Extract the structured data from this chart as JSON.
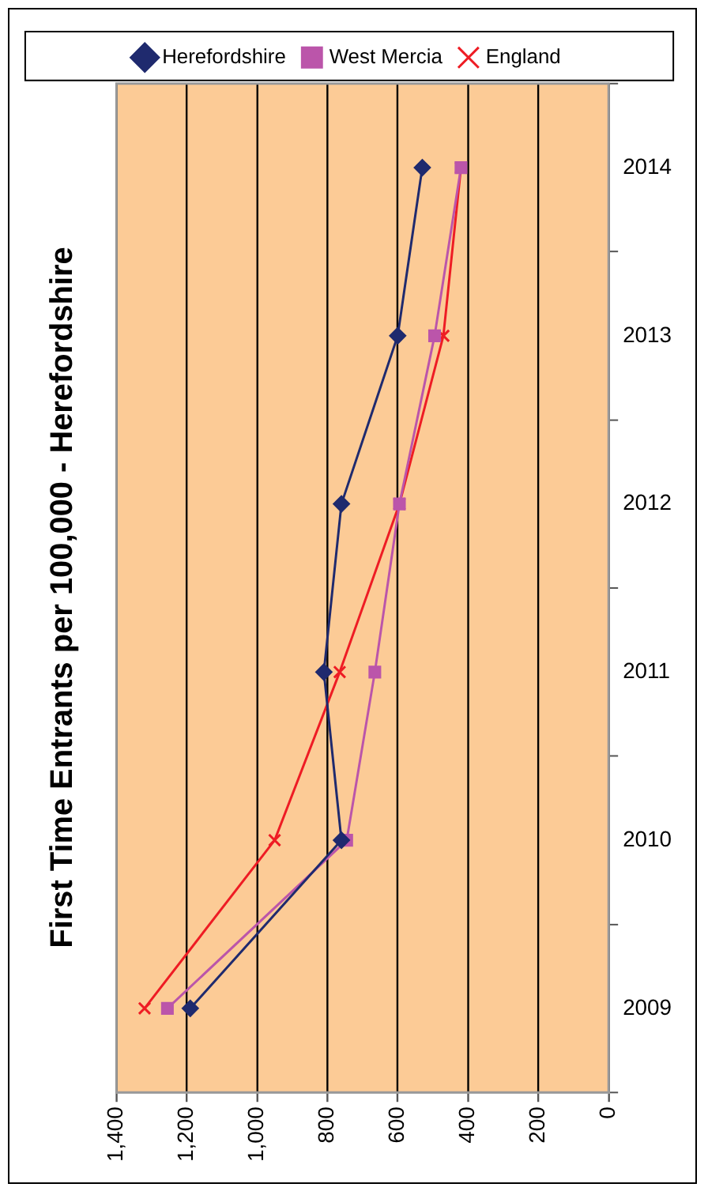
{
  "chart_data": {
    "type": "line",
    "title": "First Time Entrants per 100,000 - Herefordshire",
    "orientation": "horizontal",
    "categories": [
      "2014",
      "2013",
      "2012",
      "2011",
      "2010",
      "2009"
    ],
    "series": [
      {
        "name": "Herefordshire",
        "color": "#1f2a6e",
        "marker": "diamond",
        "values": [
          530,
          600,
          760,
          810,
          760,
          1190
        ]
      },
      {
        "name": "West Mercia",
        "color": "#bb55aa",
        "marker": "square",
        "values": [
          420,
          495,
          595,
          665,
          745,
          1255
        ]
      },
      {
        "name": "England",
        "color": "#ee1c24",
        "marker": "cross",
        "values": [
          420,
          470,
          595,
          765,
          950,
          1320
        ]
      }
    ],
    "xlim": [
      1400,
      0
    ],
    "xticks": [
      0,
      200,
      400,
      600,
      800,
      {
        "value": 1000,
        "label": "1,000"
      },
      {
        "value": 1200,
        "label": "1,200"
      },
      {
        "value": 1400,
        "label": "1,400"
      }
    ],
    "grid": "x",
    "legend": "top",
    "line_style": "solid"
  }
}
